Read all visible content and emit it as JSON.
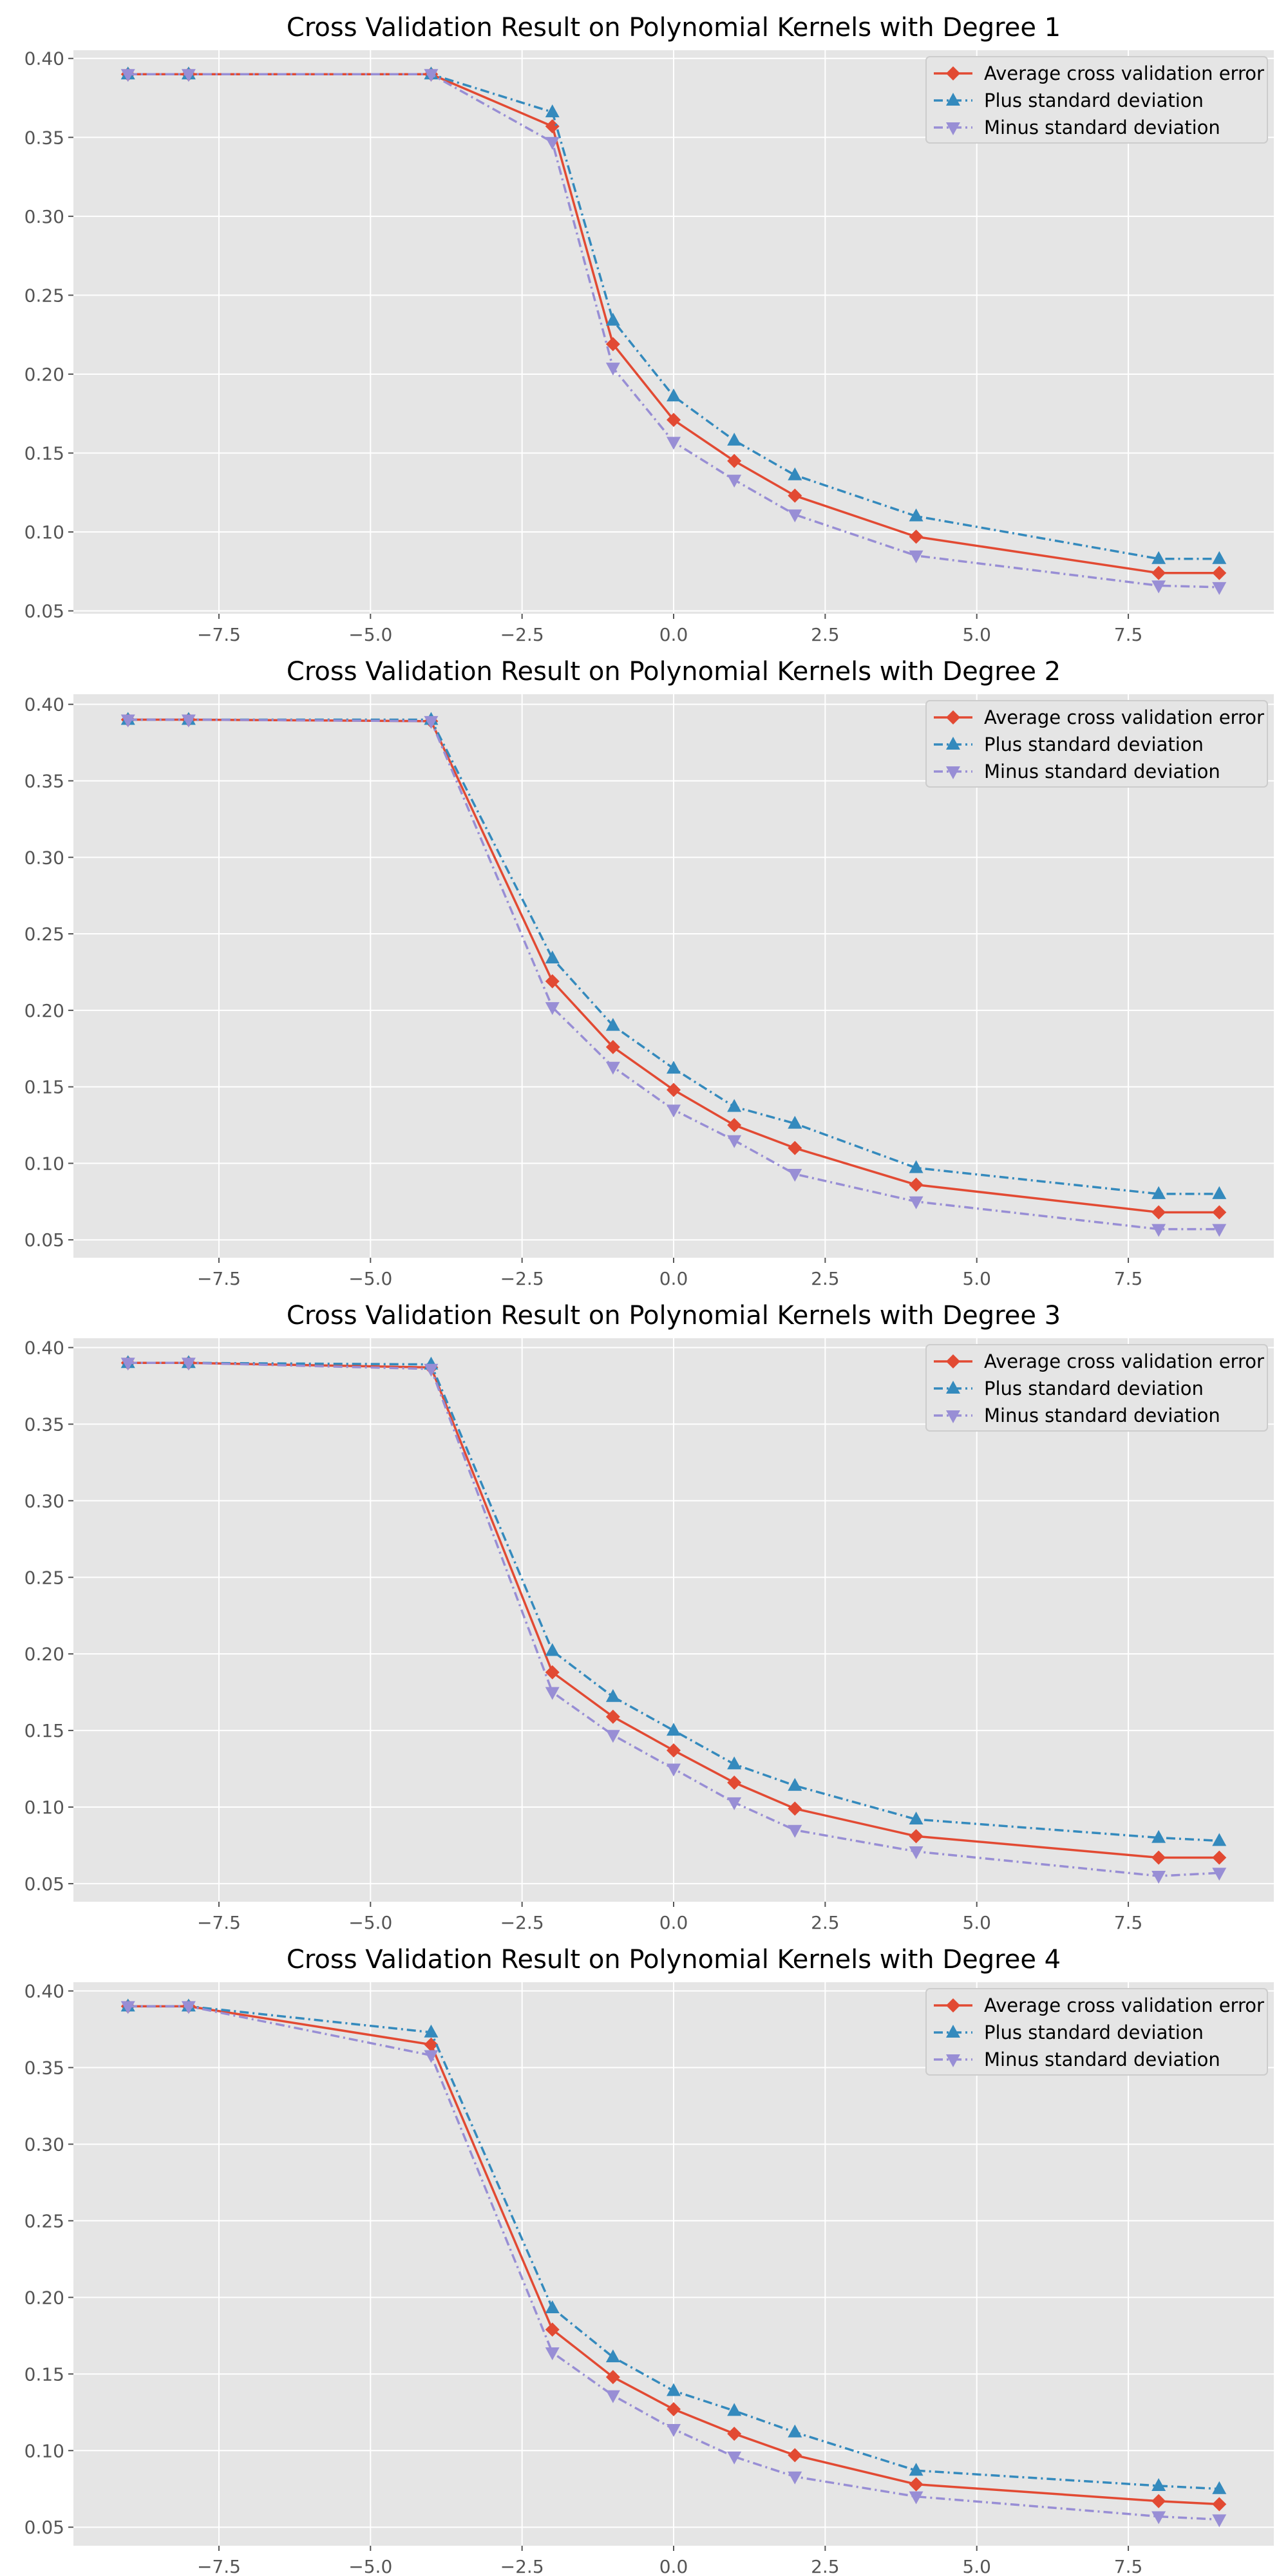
{
  "colors": {
    "panel_background": "#e5e5e5",
    "grid": "#ffffff",
    "tick_text": "#555555",
    "average": "#e24a33",
    "plus": "#348abd",
    "minus": "#988ed5"
  },
  "chart_data": [
    {
      "type": "line",
      "title": "Cross Validation Result on Polynomial Kernels with Degree 1",
      "xlabel": "",
      "ylabel": "",
      "xlim": [
        -9.9,
        9.9
      ],
      "ylim": [
        0.0482,
        0.4052
      ],
      "x_ticks": [
        -7.5,
        -5.0,
        -2.5,
        0.0,
        2.5,
        5.0,
        7.5
      ],
      "x_tick_labels": [
        "−7.5",
        "−5.0",
        "−2.5",
        "0.0",
        "2.5",
        "5.0",
        "7.5"
      ],
      "y_ticks": [
        0.05,
        0.1,
        0.15,
        0.2,
        0.25,
        0.3,
        0.35,
        0.4
      ],
      "y_tick_labels": [
        "0.05",
        "0.10",
        "0.15",
        "0.20",
        "0.25",
        "0.30",
        "0.35",
        "0.40"
      ],
      "grid": true,
      "legend_position": "upper right",
      "x": [
        -9,
        -8,
        -4,
        -2,
        -1,
        0,
        1,
        2,
        4,
        8,
        9
      ],
      "series": [
        {
          "name": "Average cross validation error",
          "color": "#e24a33",
          "line_style": "solid",
          "marker": "diamond",
          "values": [
            0.39,
            0.39,
            0.39,
            0.357,
            0.219,
            0.171,
            0.145,
            0.123,
            0.097,
            0.074,
            0.074
          ]
        },
        {
          "name": "Plus standard deviation",
          "color": "#348abd",
          "line_style": "dash-dot",
          "marker": "triangle-up",
          "values": [
            0.39,
            0.39,
            0.39,
            0.366,
            0.234,
            0.186,
            0.158,
            0.136,
            0.11,
            0.083,
            0.083
          ]
        },
        {
          "name": "Minus standard deviation",
          "color": "#988ed5",
          "line_style": "dash-dot",
          "marker": "triangle-down",
          "values": [
            0.39,
            0.39,
            0.39,
            0.347,
            0.204,
            0.157,
            0.133,
            0.111,
            0.085,
            0.066,
            0.065
          ]
        }
      ]
    },
    {
      "type": "line",
      "title": "Cross Validation Result on Polynomial Kernels with Degree 2",
      "xlabel": "",
      "ylabel": "",
      "xlim": [
        -9.9,
        9.9
      ],
      "ylim": [
        0.0383,
        0.4066
      ],
      "x_ticks": [
        -7.5,
        -5.0,
        -2.5,
        0.0,
        2.5,
        5.0,
        7.5
      ],
      "x_tick_labels": [
        "−7.5",
        "−5.0",
        "−2.5",
        "0.0",
        "2.5",
        "5.0",
        "7.5"
      ],
      "y_ticks": [
        0.05,
        0.1,
        0.15,
        0.2,
        0.25,
        0.3,
        0.35,
        0.4
      ],
      "y_tick_labels": [
        "0.05",
        "0.10",
        "0.15",
        "0.20",
        "0.25",
        "0.30",
        "0.35",
        "0.40"
      ],
      "grid": true,
      "legend_position": "upper right",
      "x": [
        -9,
        -8,
        -4,
        -2,
        -1,
        0,
        1,
        2,
        4,
        8,
        9
      ],
      "series": [
        {
          "name": "Average cross validation error",
          "color": "#e24a33",
          "line_style": "solid",
          "marker": "diamond",
          "values": [
            0.39,
            0.39,
            0.389,
            0.219,
            0.176,
            0.148,
            0.125,
            0.11,
            0.086,
            0.068,
            0.068
          ]
        },
        {
          "name": "Plus standard deviation",
          "color": "#348abd",
          "line_style": "dash-dot",
          "marker": "triangle-up",
          "values": [
            0.39,
            0.39,
            0.39,
            0.234,
            0.19,
            0.162,
            0.137,
            0.126,
            0.097,
            0.08,
            0.08
          ]
        },
        {
          "name": "Minus standard deviation",
          "color": "#988ed5",
          "line_style": "dash-dot",
          "marker": "triangle-down",
          "values": [
            0.39,
            0.39,
            0.389,
            0.202,
            0.163,
            0.135,
            0.115,
            0.093,
            0.075,
            0.057,
            0.057
          ]
        }
      ]
    },
    {
      "type": "line",
      "title": "Cross Validation Result on Polynomial Kernels with Degree 3",
      "xlabel": "",
      "ylabel": "",
      "xlim": [
        -9.9,
        9.9
      ],
      "ylim": [
        0.0382,
        0.4061
      ],
      "x_ticks": [
        -7.5,
        -5.0,
        -2.5,
        0.0,
        2.5,
        5.0,
        7.5
      ],
      "x_tick_labels": [
        "−7.5",
        "−5.0",
        "−2.5",
        "0.0",
        "2.5",
        "5.0",
        "7.5"
      ],
      "y_ticks": [
        0.05,
        0.1,
        0.15,
        0.2,
        0.25,
        0.3,
        0.35,
        0.4
      ],
      "y_tick_labels": [
        "0.05",
        "0.10",
        "0.15",
        "0.20",
        "0.25",
        "0.30",
        "0.35",
        "0.40"
      ],
      "grid": true,
      "legend_position": "upper right",
      "x": [
        -9,
        -8,
        -4,
        -2,
        -1,
        0,
        1,
        2,
        4,
        8,
        9
      ],
      "series": [
        {
          "name": "Average cross validation error",
          "color": "#e24a33",
          "line_style": "solid",
          "marker": "diamond",
          "values": [
            0.39,
            0.39,
            0.387,
            0.188,
            0.159,
            0.137,
            0.116,
            0.099,
            0.081,
            0.067,
            0.067
          ]
        },
        {
          "name": "Plus standard deviation",
          "color": "#348abd",
          "line_style": "dash-dot",
          "marker": "triangle-up",
          "values": [
            0.39,
            0.39,
            0.389,
            0.202,
            0.172,
            0.15,
            0.128,
            0.114,
            0.092,
            0.08,
            0.078
          ]
        },
        {
          "name": "Minus standard deviation",
          "color": "#988ed5",
          "line_style": "dash-dot",
          "marker": "triangle-down",
          "values": [
            0.39,
            0.39,
            0.386,
            0.175,
            0.147,
            0.125,
            0.103,
            0.085,
            0.071,
            0.055,
            0.057
          ]
        }
      ]
    },
    {
      "type": "line",
      "title": "Cross Validation Result on Polynomial Kernels with Degree 4",
      "xlabel": "",
      "ylabel": "",
      "xlim": [
        -9.9,
        9.9
      ],
      "ylim": [
        0.0379,
        0.4057
      ],
      "x_ticks": [
        -7.5,
        -5.0,
        -2.5,
        0.0,
        2.5,
        5.0,
        7.5
      ],
      "x_tick_labels": [
        "−7.5",
        "−5.0",
        "−2.5",
        "0.0",
        "2.5",
        "5.0",
        "7.5"
      ],
      "y_ticks": [
        0.05,
        0.1,
        0.15,
        0.2,
        0.25,
        0.3,
        0.35,
        0.4
      ],
      "y_tick_labels": [
        "0.05",
        "0.10",
        "0.15",
        "0.20",
        "0.25",
        "0.30",
        "0.35",
        "0.40"
      ],
      "grid": true,
      "legend_position": "upper right",
      "x": [
        -9,
        -8,
        -4,
        -2,
        -1,
        0,
        1,
        2,
        4,
        8,
        9
      ],
      "series": [
        {
          "name": "Average cross validation error",
          "color": "#e24a33",
          "line_style": "solid",
          "marker": "diamond",
          "values": [
            0.39,
            0.39,
            0.365,
            0.179,
            0.148,
            0.127,
            0.111,
            0.097,
            0.078,
            0.067,
            0.065
          ]
        },
        {
          "name": "Plus standard deviation",
          "color": "#348abd",
          "line_style": "dash-dot",
          "marker": "triangle-up",
          "values": [
            0.39,
            0.39,
            0.373,
            0.193,
            0.161,
            0.139,
            0.126,
            0.112,
            0.087,
            0.077,
            0.075
          ]
        },
        {
          "name": "Minus standard deviation",
          "color": "#988ed5",
          "line_style": "dash-dot",
          "marker": "triangle-down",
          "values": [
            0.39,
            0.39,
            0.358,
            0.164,
            0.136,
            0.114,
            0.096,
            0.083,
            0.07,
            0.057,
            0.055
          ]
        }
      ]
    }
  ]
}
